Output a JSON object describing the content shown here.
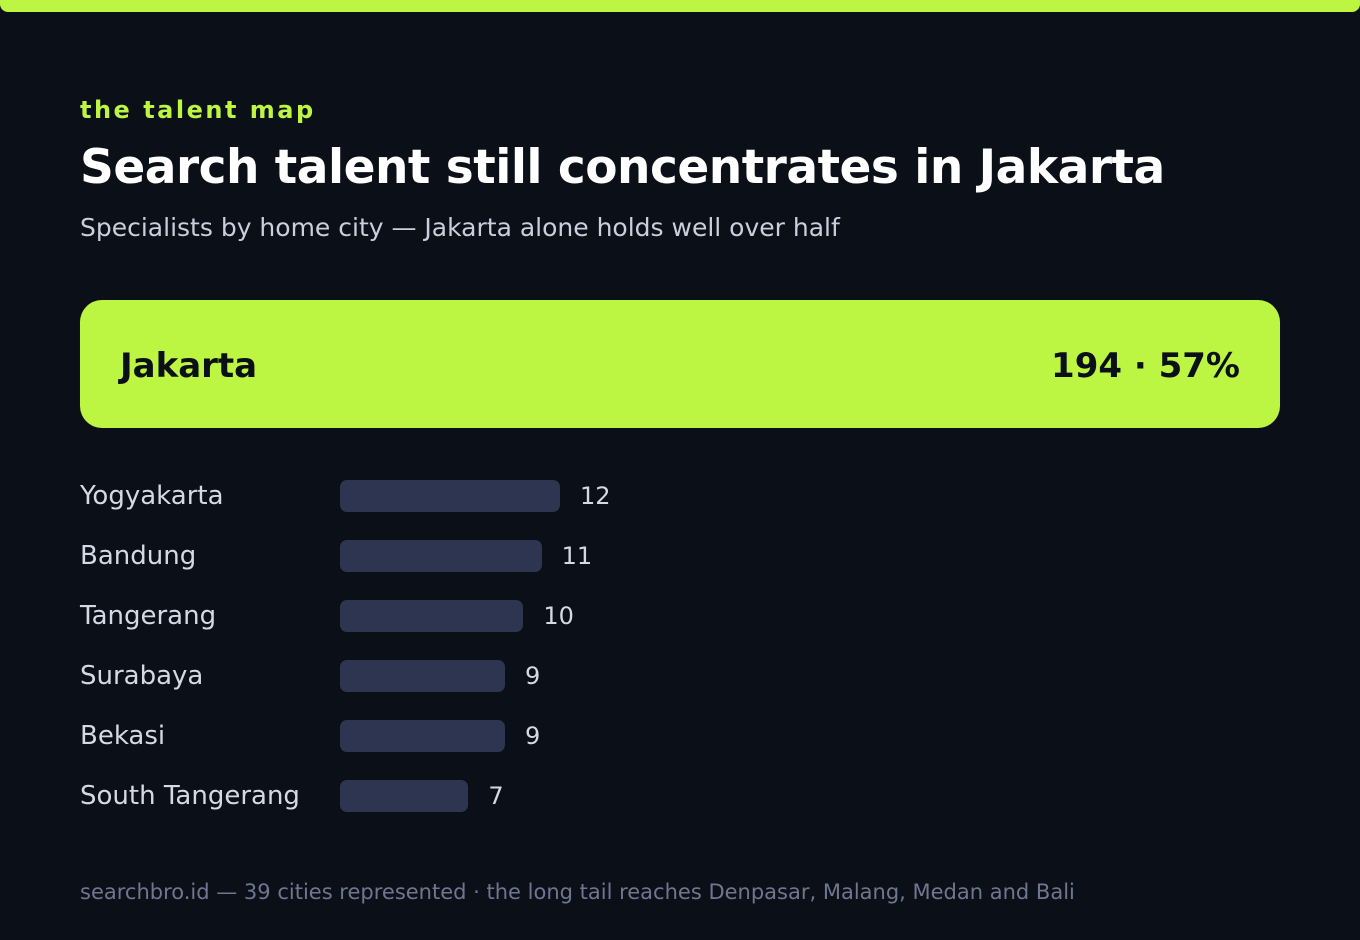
{
  "eyebrow": "the talent map",
  "title": "Search talent still concentrates in Jakarta",
  "subtitle": "Specialists by home city — Jakarta alone holds well over half",
  "hero": {
    "city": "Jakarta",
    "stat": "194 · 57%"
  },
  "footer": "searchbro.id — 39 cities represented · the long tail reaches Denpasar, Malang, Medan and Bali",
  "colors": {
    "accent": "#bdf543",
    "background": "#0b0f17",
    "bar": "#2d3550"
  },
  "chart_data": {
    "type": "bar",
    "orientation": "horizontal",
    "highlight": {
      "category": "Jakarta",
      "value": 194,
      "share_percent": 57
    },
    "categories": [
      "Yogyakarta",
      "Bandung",
      "Tangerang",
      "Surabaya",
      "Bekasi",
      "South Tangerang"
    ],
    "values": [
      12,
      11,
      10,
      9,
      9,
      7
    ],
    "value_labels": [
      "12",
      "11",
      "10",
      "9",
      "9",
      "7"
    ],
    "xlim": [
      0,
      12
    ]
  }
}
